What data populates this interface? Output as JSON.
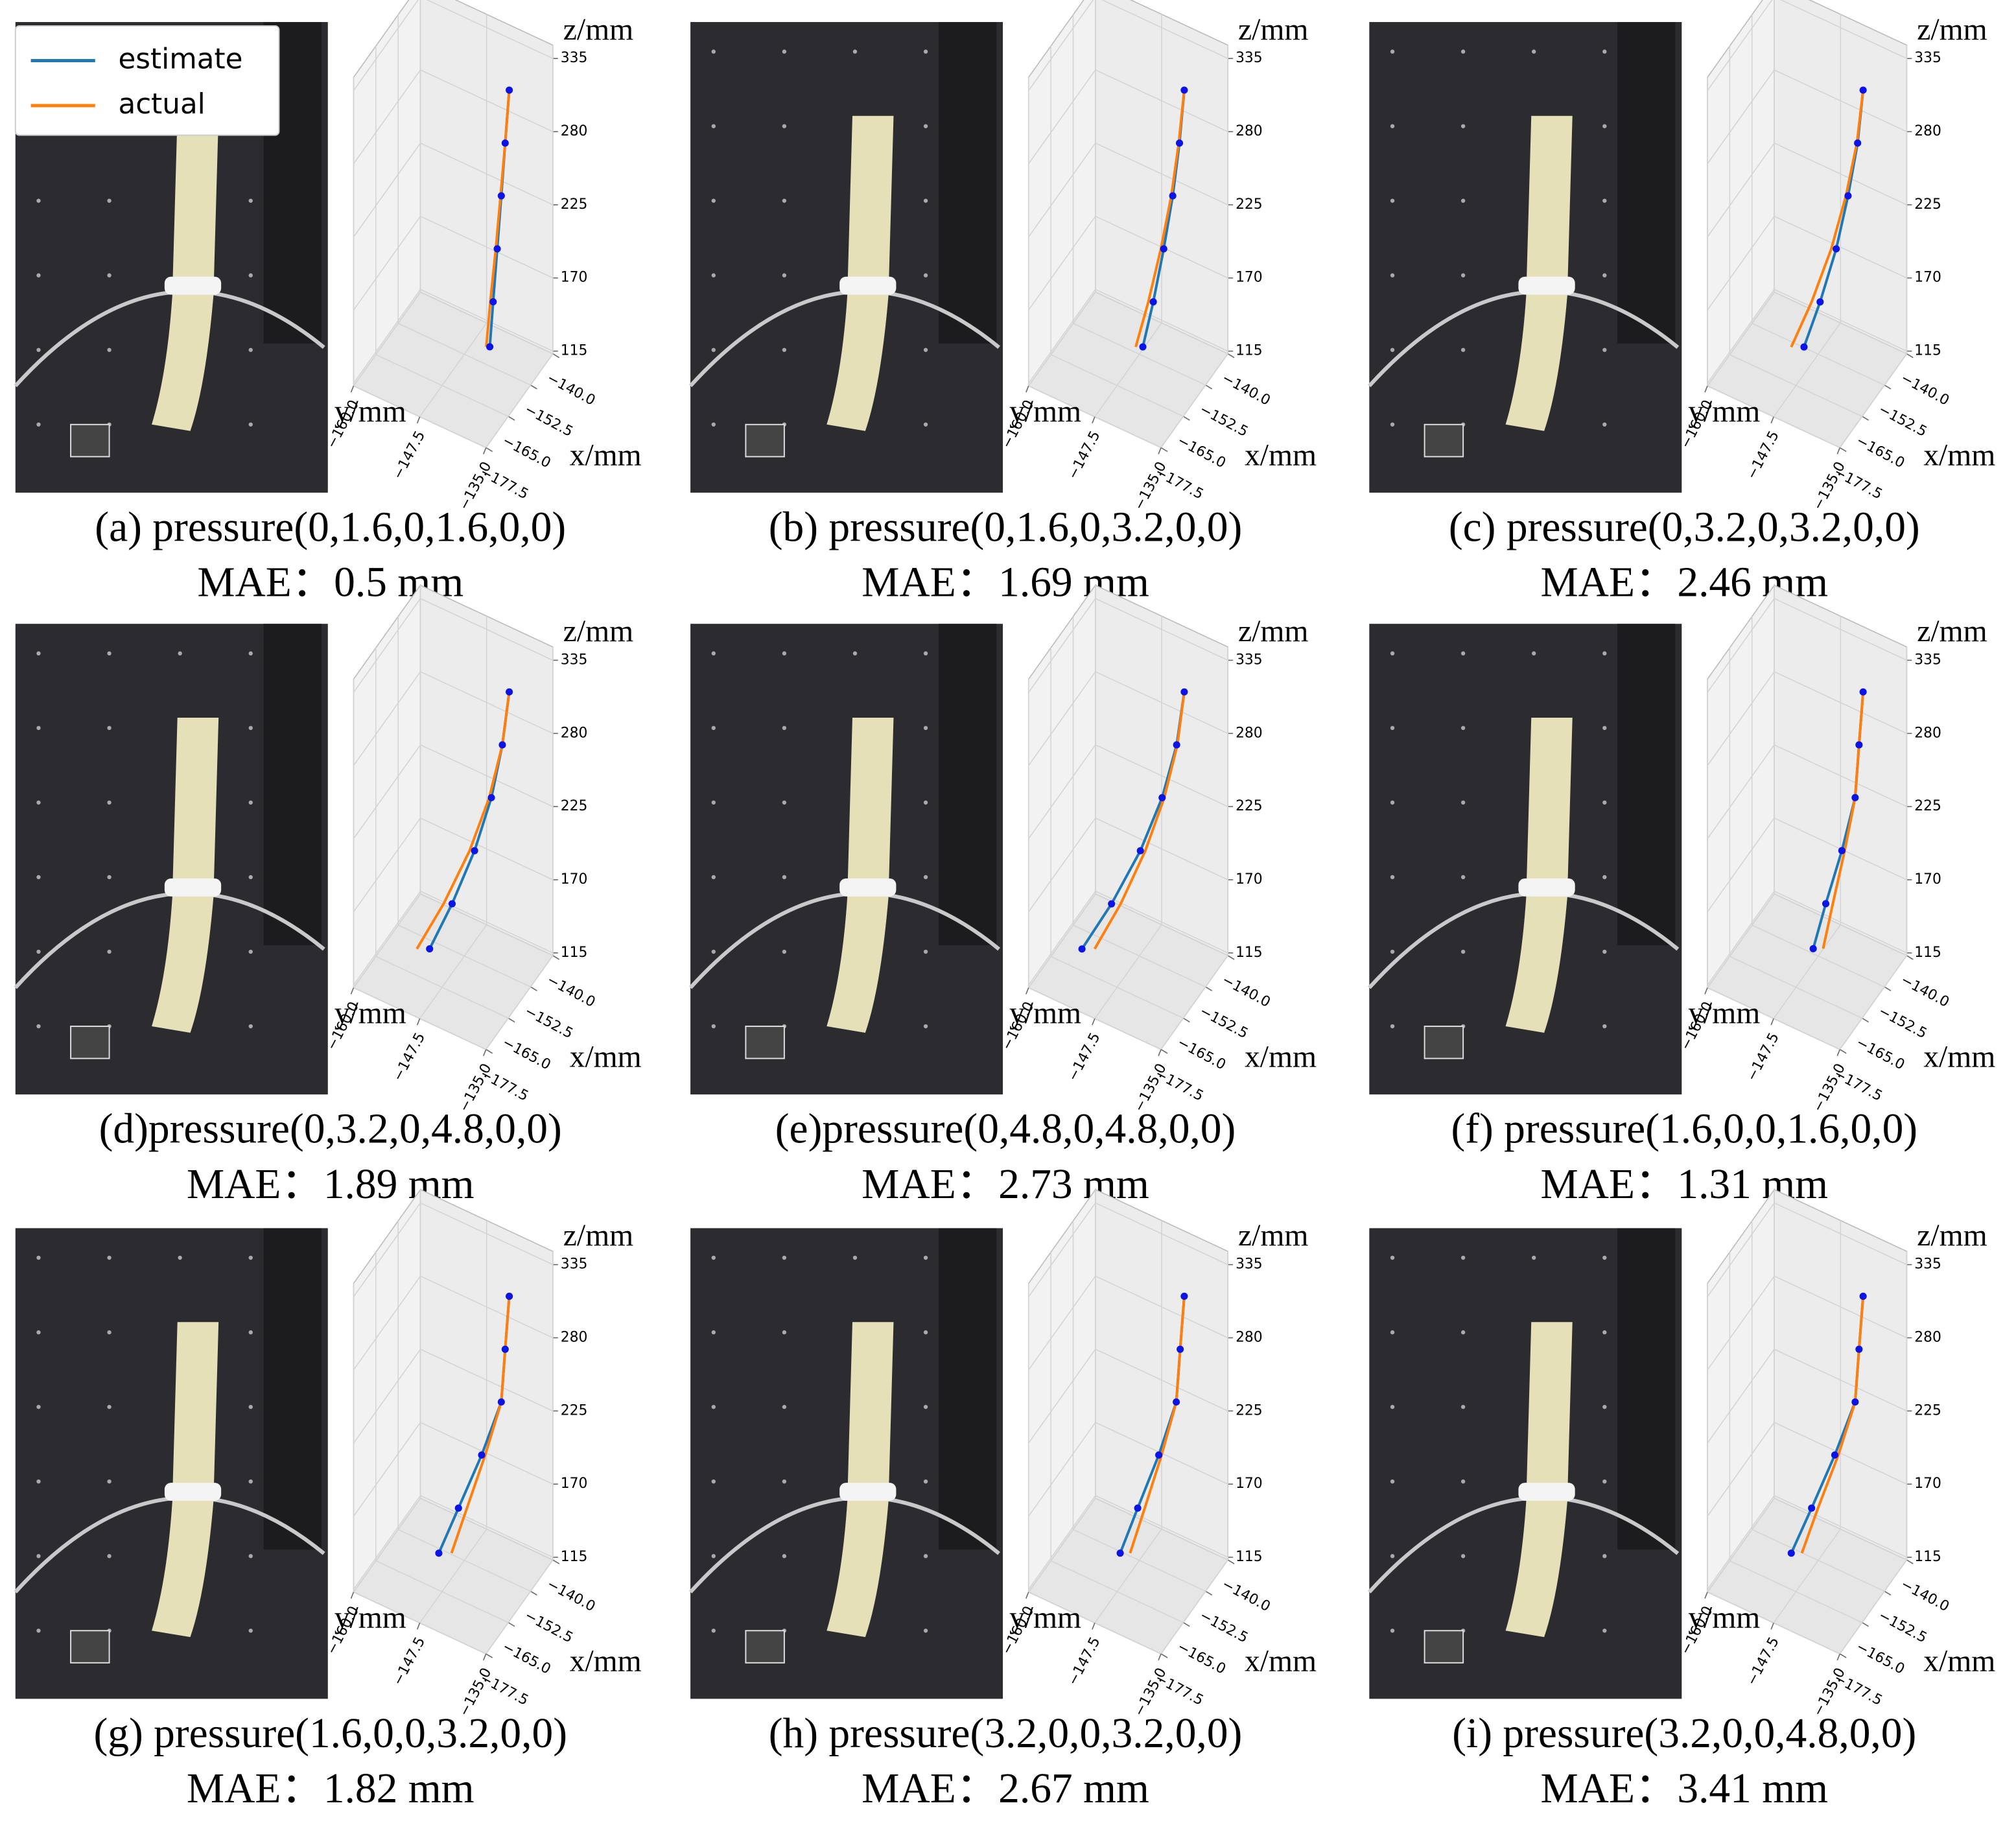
{
  "chart_data": [
    {
      "type": "line3d",
      "caption": "(a) pressure(0,1.6,0,1.6,0,0)",
      "mae": "MAE：0.5 mm",
      "legend": "upper left",
      "xlabel": "x/mm",
      "ylabel": "y/mm",
      "zlabel": "z/mm",
      "xlim": [
        -140,
        -177.5
      ],
      "ylim": [
        -160,
        -135
      ],
      "zlim": [
        113,
        345
      ],
      "xticks": [
        {
          "value": -140,
          "label": "−140.0"
        },
        {
          "value": -152.5,
          "label": "−152.5"
        },
        {
          "value": -165,
          "label": "−165.0"
        },
        {
          "value": -177.5,
          "label": "−177.5"
        }
      ],
      "yticks": [
        {
          "value": -160,
          "label": "−160.0"
        },
        {
          "value": -147.5,
          "label": "−147.5"
        },
        {
          "value": -135,
          "label": "−135.0"
        }
      ],
      "zticks": [
        115,
        170,
        225,
        280,
        335
      ],
      "grid": true,
      "series": [
        {
          "name": "estimate",
          "color": "#1f77b4",
          "marker_color": "#0a14e6",
          "x": [
            -149.6,
            -150.1,
            -150.5,
            -151.0,
            -151.5,
            -151.9
          ],
          "y": [
            -140,
            -140.6,
            -141.2,
            -141.8,
            -142.4,
            -142.9
          ],
          "z": [
            320,
            280,
            240,
            200,
            160,
            126
          ]
        },
        {
          "name": "actual",
          "color": "#ff7f0e",
          "x": [
            -149.6,
            -150.1,
            -150.6,
            -151.2,
            -151.9,
            -152.4
          ],
          "y": [
            -140,
            -140.6,
            -141.3,
            -142.0,
            -142.8,
            -143.4
          ],
          "z": [
            320,
            280,
            240,
            200,
            160,
            126
          ]
        }
      ]
    },
    {
      "type": "line3d",
      "caption": "(b) pressure(0,1.6,0,3.2,0,0)",
      "mae": "MAE：1.69 mm",
      "xlabel": "x/mm",
      "ylabel": "y/mm",
      "zlabel": "z/mm",
      "xlim": [
        -140,
        -177.5
      ],
      "ylim": [
        -160,
        -135
      ],
      "zlim": [
        113,
        345
      ],
      "xticks": [
        {
          "value": -140,
          "label": "−140.0"
        },
        {
          "value": -152.5,
          "label": "−152.5"
        },
        {
          "value": -165,
          "label": "−165.0"
        },
        {
          "value": -177.5,
          "label": "−177.5"
        }
      ],
      "yticks": [
        {
          "value": -160,
          "label": "−160.0"
        },
        {
          "value": -147.5,
          "label": "−147.5"
        },
        {
          "value": -135,
          "label": "−135.0"
        }
      ],
      "zticks": [
        115,
        170,
        225,
        280,
        335
      ],
      "grid": true,
      "series": [
        {
          "color": "#1f77b4",
          "marker_color": "#0a14e6",
          "x": [
            -149.6,
            -150.2,
            -151.0,
            -152.2,
            -153.6,
            -155.0
          ],
          "y": [
            -140,
            -140.7,
            -141.7,
            -143.0,
            -144.5,
            -146.0
          ],
          "z": [
            320,
            280,
            240,
            200,
            160,
            126
          ]
        },
        {
          "color": "#ff7f0e",
          "x": [
            -149.6,
            -150.3,
            -151.2,
            -152.6,
            -154.3,
            -156.0
          ],
          "y": [
            -140,
            -140.8,
            -141.9,
            -143.4,
            -145.2,
            -147.0
          ],
          "z": [
            320,
            280,
            240,
            200,
            160,
            126
          ]
        }
      ]
    },
    {
      "type": "line3d",
      "caption": "(c) pressure(0,3.2,0,3.2,0,0)",
      "mae": "MAE：2.46 mm",
      "xlabel": "x/mm",
      "ylabel": "y/mm",
      "zlabel": "z/mm",
      "xlim": [
        -140,
        -177.5
      ],
      "ylim": [
        -160,
        -135
      ],
      "zlim": [
        113,
        345
      ],
      "xticks": [
        {
          "value": -140,
          "label": "−140.0"
        },
        {
          "value": -152.5,
          "label": "−152.5"
        },
        {
          "value": -165,
          "label": "−165.0"
        },
        {
          "value": -177.5,
          "label": "−177.5"
        }
      ],
      "yticks": [
        {
          "value": -160,
          "label": "−160.0"
        },
        {
          "value": -147.5,
          "label": "−147.5"
        },
        {
          "value": -135,
          "label": "−135.0"
        }
      ],
      "zticks": [
        115,
        170,
        225,
        280,
        335
      ],
      "grid": true,
      "series": [
        {
          "color": "#1f77b4",
          "marker_color": "#0a14e6",
          "x": [
            -149.6,
            -150.3,
            -151.5,
            -153.1,
            -155.3,
            -157.5
          ],
          "y": [
            -140,
            -140.8,
            -142.2,
            -143.9,
            -146.2,
            -148.5
          ],
          "z": [
            320,
            280,
            240,
            200,
            160,
            126
          ]
        },
        {
          "color": "#ff7f0e",
          "x": [
            -149.6,
            -150.4,
            -151.8,
            -153.8,
            -156.5,
            -159.3
          ],
          "y": [
            -140,
            -140.9,
            -142.5,
            -144.6,
            -147.4,
            -150.3
          ],
          "z": [
            320,
            280,
            240,
            200,
            160,
            126
          ]
        }
      ]
    },
    {
      "type": "line3d",
      "caption": "(d)pressure(0,3.2,0,4.8,0,0)",
      "mae": "MAE：1.89 mm",
      "xlabel": "x/mm",
      "ylabel": "y/mm",
      "zlabel": "z/mm",
      "xlim": [
        -140,
        -177.5
      ],
      "ylim": [
        -160,
        -135
      ],
      "zlim": [
        113,
        345
      ],
      "xticks": [
        {
          "value": -140,
          "label": "−140.0"
        },
        {
          "value": -152.5,
          "label": "−152.5"
        },
        {
          "value": -165,
          "label": "−165.0"
        },
        {
          "value": -177.5,
          "label": "−177.5"
        }
      ],
      "yticks": [
        {
          "value": -160,
          "label": "−160.0"
        },
        {
          "value": -147.5,
          "label": "−147.5"
        },
        {
          "value": -135,
          "label": "−135.0"
        }
      ],
      "zticks": [
        115,
        170,
        225,
        280,
        335
      ],
      "grid": true,
      "series": [
        {
          "color": "#1f77b4",
          "marker_color": "#0a14e6",
          "x": [
            -149.6,
            -150.5,
            -151.9,
            -154.2,
            -157.3,
            -160.4
          ],
          "y": [
            -140,
            -141.0,
            -142.6,
            -145.0,
            -148.2,
            -151.4
          ],
          "z": [
            320,
            280,
            240,
            200,
            160,
            126
          ]
        },
        {
          "color": "#ff7f0e",
          "x": [
            -149.6,
            -150.5,
            -152.2,
            -154.9,
            -158.5,
            -162.2
          ],
          "y": [
            -140,
            -141.0,
            -142.9,
            -145.7,
            -149.4,
            -153.2
          ],
          "z": [
            320,
            280,
            240,
            200,
            160,
            126
          ]
        }
      ]
    },
    {
      "type": "line3d",
      "caption": "(e)pressure(0,4.8,0,4.8,0,0)",
      "mae": "MAE：2.73 mm",
      "xlabel": "x/mm",
      "ylabel": "y/mm",
      "zlabel": "z/mm",
      "xlim": [
        -140,
        -177.5
      ],
      "ylim": [
        -160,
        -135
      ],
      "zlim": [
        113,
        345
      ],
      "xticks": [
        {
          "value": -140,
          "label": "−140.0"
        },
        {
          "value": -152.5,
          "label": "−152.5"
        },
        {
          "value": -165,
          "label": "−165.0"
        },
        {
          "value": -177.5,
          "label": "−177.5"
        }
      ],
      "yticks": [
        {
          "value": -160,
          "label": "−160.0"
        },
        {
          "value": -147.5,
          "label": "−147.5"
        },
        {
          "value": -135,
          "label": "−135.0"
        }
      ],
      "zticks": [
        115,
        170,
        225,
        280,
        335
      ],
      "grid": true,
      "series": [
        {
          "color": "#1f77b4",
          "marker_color": "#0a14e6",
          "x": [
            -149.6,
            -150.6,
            -152.5,
            -155.5,
            -159.5,
            -163.6
          ],
          "y": [
            -140,
            -141.1,
            -143.2,
            -146.3,
            -150.4,
            -154.6
          ],
          "z": [
            320,
            280,
            240,
            200,
            160,
            126
          ]
        },
        {
          "color": "#ff7f0e",
          "x": [
            -149.6,
            -150.5,
            -152.2,
            -154.8,
            -158.2,
            -161.8
          ],
          "y": [
            -140,
            -141.0,
            -142.9,
            -145.6,
            -149.1,
            -152.8
          ],
          "z": [
            320,
            280,
            240,
            200,
            160,
            126
          ]
        }
      ]
    },
    {
      "type": "line3d",
      "caption": "(f) pressure(1.6,0,0,1.6,0,0)",
      "mae": "MAE：1.31 mm",
      "xlabel": "x/mm",
      "ylabel": "y/mm",
      "zlabel": "z/mm",
      "xlim": [
        -140,
        -177.5
      ],
      "ylim": [
        -160,
        -135
      ],
      "zlim": [
        113,
        345
      ],
      "xticks": [
        {
          "value": -140,
          "label": "−140.0"
        },
        {
          "value": -152.5,
          "label": "−152.5"
        },
        {
          "value": -165,
          "label": "−165.0"
        },
        {
          "value": -177.5,
          "label": "−177.5"
        }
      ],
      "yticks": [
        {
          "value": -160,
          "label": "−160.0"
        },
        {
          "value": -147.5,
          "label": "−147.5"
        },
        {
          "value": -135,
          "label": "−135.0"
        }
      ],
      "zticks": [
        115,
        170,
        225,
        280,
        335
      ],
      "grid": true,
      "series": [
        {
          "color": "#1f77b4",
          "marker_color": "#0a14e6",
          "x": [
            -149.6,
            -150.1,
            -150.5,
            -152.3,
            -154.5,
            -156.2
          ],
          "y": [
            -140,
            -140.6,
            -141.2,
            -143.1,
            -145.4,
            -147.2
          ],
          "z": [
            320,
            280,
            240,
            200,
            160,
            126
          ]
        },
        {
          "color": "#ff7f0e",
          "x": [
            -149.6,
            -150.1,
            -150.5,
            -151.9,
            -153.5,
            -154.8
          ],
          "y": [
            -140,
            -140.6,
            -141.2,
            -142.7,
            -144.4,
            -145.8
          ],
          "z": [
            320,
            280,
            240,
            200,
            160,
            126
          ]
        }
      ]
    },
    {
      "type": "line3d",
      "caption": "(g) pressure(1.6,0,0,3.2,0,0)",
      "mae": "MAE：1.82 mm",
      "xlabel": "x/mm",
      "ylabel": "y/mm",
      "zlabel": "z/mm",
      "xlim": [
        -140,
        -177.5
      ],
      "ylim": [
        -160,
        -135
      ],
      "zlim": [
        113,
        345
      ],
      "xticks": [
        {
          "value": -140,
          "label": "−140.0"
        },
        {
          "value": -152.5,
          "label": "−152.5"
        },
        {
          "value": -165,
          "label": "−165.0"
        },
        {
          "value": -177.5,
          "label": "−177.5"
        }
      ],
      "yticks": [
        {
          "value": -160,
          "label": "−160.0"
        },
        {
          "value": -147.5,
          "label": "−147.5"
        },
        {
          "value": -135,
          "label": "−135.0"
        }
      ],
      "zticks": [
        115,
        170,
        225,
        280,
        335
      ],
      "grid": true,
      "series": [
        {
          "color": "#1f77b4",
          "marker_color": "#0a14e6",
          "x": [
            -149.6,
            -150.1,
            -150.5,
            -153.2,
            -156.4,
            -159.1
          ],
          "y": [
            -140,
            -140.6,
            -141.2,
            -144.0,
            -147.3,
            -150.1
          ],
          "z": [
            320,
            280,
            240,
            200,
            160,
            126
          ]
        },
        {
          "color": "#ff7f0e",
          "x": [
            -149.6,
            -150.1,
            -150.5,
            -152.7,
            -155.2,
            -157.3
          ],
          "y": [
            -140,
            -140.6,
            -141.2,
            -143.5,
            -146.1,
            -148.3
          ],
          "z": [
            320,
            280,
            240,
            200,
            160,
            126
          ]
        }
      ]
    },
    {
      "type": "line3d",
      "caption": "(h) pressure(3.2,0,0,3.2,0,0)",
      "mae": "MAE：2.67 mm",
      "xlabel": "x/mm",
      "ylabel": "y/mm",
      "zlabel": "z/mm",
      "xlim": [
        -140,
        -177.5
      ],
      "ylim": [
        -160,
        -135
      ],
      "zlim": [
        113,
        345
      ],
      "xticks": [
        {
          "value": -140,
          "label": "−140.0"
        },
        {
          "value": -152.5,
          "label": "−152.5"
        },
        {
          "value": -165,
          "label": "−165.0"
        },
        {
          "value": -177.5,
          "label": "−177.5"
        }
      ],
      "yticks": [
        {
          "value": -160,
          "label": "−160.0"
        },
        {
          "value": -147.5,
          "label": "−147.5"
        },
        {
          "value": -135,
          "label": "−135.0"
        }
      ],
      "zticks": [
        115,
        170,
        225,
        280,
        335
      ],
      "grid": true,
      "series": [
        {
          "color": "#1f77b4",
          "marker_color": "#0a14e6",
          "x": [
            -149.6,
            -150.1,
            -150.5,
            -152.9,
            -155.8,
            -158.2
          ],
          "y": [
            -140,
            -140.6,
            -141.2,
            -143.7,
            -146.7,
            -149.2
          ],
          "z": [
            320,
            280,
            240,
            200,
            160,
            126
          ]
        },
        {
          "color": "#ff7f0e",
          "x": [
            -149.6,
            -150.1,
            -150.5,
            -152.5,
            -154.8,
            -156.8
          ],
          "y": [
            -140,
            -140.6,
            -141.2,
            -143.3,
            -145.7,
            -147.8
          ],
          "z": [
            320,
            280,
            240,
            200,
            160,
            126
          ]
        }
      ]
    },
    {
      "type": "line3d",
      "caption": "(i) pressure(3.2,0,0,4.8,0,0)",
      "mae": "MAE：3.41 mm",
      "xlabel": "x/mm",
      "ylabel": "y/mm",
      "zlabel": "z/mm",
      "xlim": [
        -140,
        -177.5
      ],
      "ylim": [
        -160,
        -135
      ],
      "zlim": [
        113,
        345
      ],
      "xticks": [
        {
          "value": -140,
          "label": "−140.0"
        },
        {
          "value": -152.5,
          "label": "−152.5"
        },
        {
          "value": -165,
          "label": "−165.0"
        },
        {
          "value": -177.5,
          "label": "−177.5"
        }
      ],
      "yticks": [
        {
          "value": -160,
          "label": "−160.0"
        },
        {
          "value": -147.5,
          "label": "−147.5"
        },
        {
          "value": -135,
          "label": "−135.0"
        }
      ],
      "zticks": [
        115,
        170,
        225,
        280,
        335
      ],
      "grid": true,
      "series": [
        {
          "color": "#1f77b4",
          "marker_color": "#0a14e6",
          "x": [
            -149.6,
            -150.1,
            -150.5,
            -153.3,
            -156.5,
            -159.3
          ],
          "y": [
            -140,
            -140.6,
            -141.2,
            -144.1,
            -147.4,
            -150.3
          ],
          "z": [
            320,
            280,
            240,
            200,
            160,
            126
          ]
        },
        {
          "color": "#ff7f0e",
          "x": [
            -149.6,
            -150.1,
            -150.5,
            -152.8,
            -155.6,
            -157.8
          ],
          "y": [
            -140,
            -140.6,
            -141.2,
            -143.6,
            -146.5,
            -148.8
          ],
          "z": [
            320,
            280,
            240,
            200,
            160,
            126
          ]
        }
      ]
    }
  ]
}
